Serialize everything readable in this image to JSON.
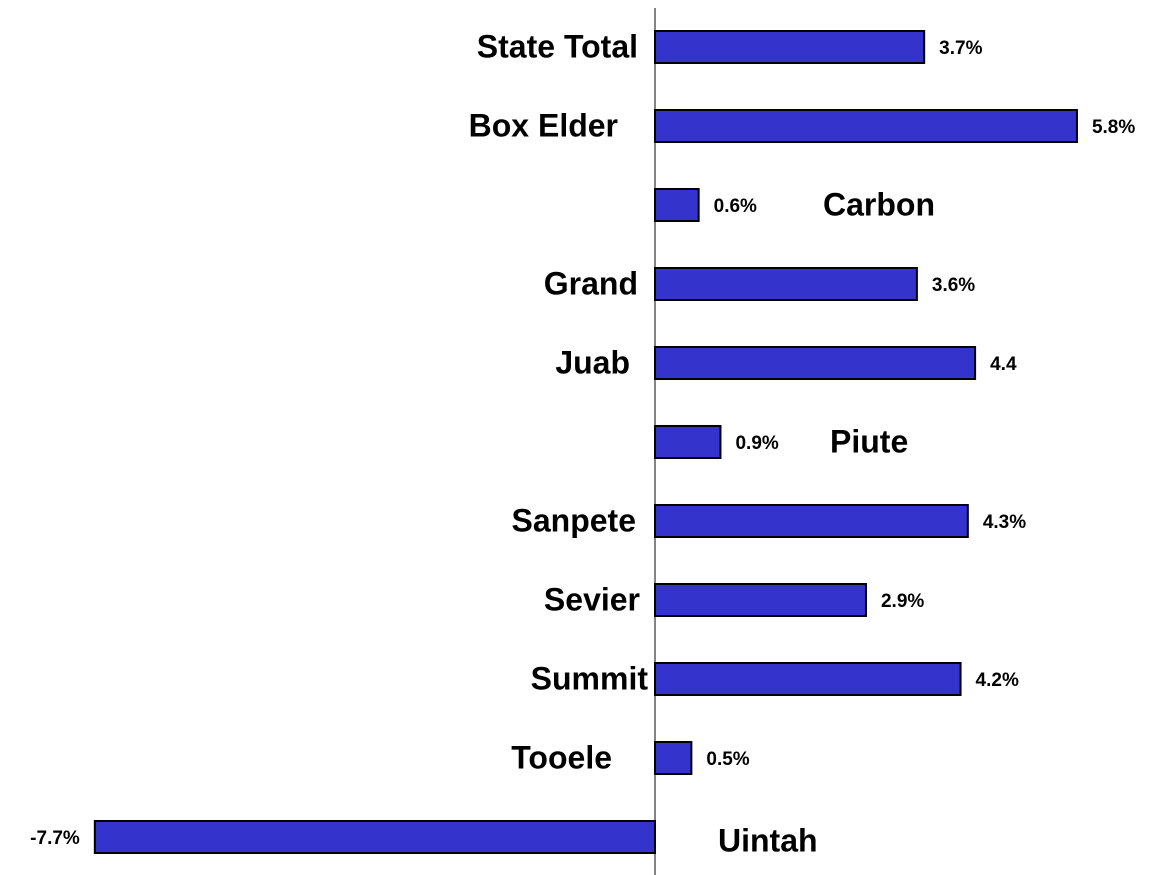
{
  "chart_data": {
    "type": "bar",
    "orientation": "horizontal",
    "categories": [
      "State Total",
      "Box Elder",
      "Carbon",
      "Grand",
      "Juab",
      "Piute",
      "Sanpete",
      "Sevier",
      "Summit",
      "Tooele",
      "Uintah"
    ],
    "values": [
      3.7,
      5.8,
      0.6,
      3.6,
      4.4,
      0.9,
      4.3,
      2.9,
      4.2,
      0.5,
      -7.7
    ],
    "value_labels": [
      "3.7%",
      "5.8%",
      "0.6%",
      "3.6%",
      "4.4",
      "0.9%",
      "4.3%",
      "2.9%",
      "4.2%",
      "0.5%",
      "-7.7%"
    ],
    "color": "#3434cc"
  }
}
